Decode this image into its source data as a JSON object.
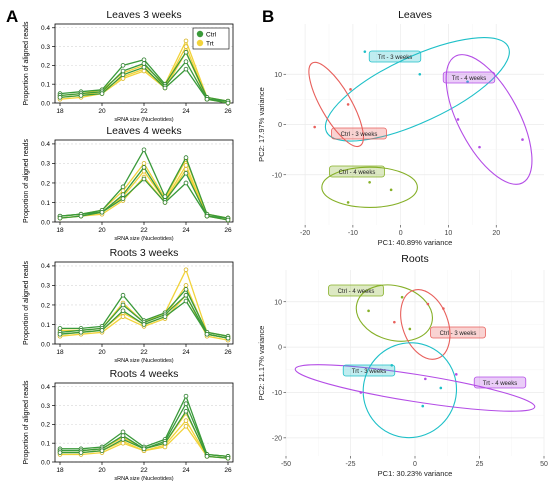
{
  "panels": [
    {
      "letter": "A"
    },
    {
      "letter": "B"
    }
  ],
  "series_colors": {
    "Ctrl": "#3a9a3a",
    "Trt": "#f2d33a"
  },
  "chart_data": [
    {
      "type": "line",
      "title": "Leaves 3 weeks",
      "xlabel": "sRNA size (Nucleotides)",
      "ylabel": "Proportion of aligned reads",
      "x": [
        18,
        19,
        20,
        21,
        22,
        23,
        24,
        25,
        26
      ],
      "xticks": [
        18,
        20,
        22,
        24,
        26
      ],
      "yticks": [
        0.0,
        0.1,
        0.2,
        0.3,
        0.4
      ],
      "ylim": [
        0,
        0.42
      ],
      "legend": [
        "Ctrl",
        "Trt"
      ],
      "legend_position": "top-right",
      "series": [
        {
          "name": "Ctrl",
          "values": [
            0.05,
            0.06,
            0.07,
            0.2,
            0.23,
            0.1,
            0.27,
            0.03,
            0.01
          ]
        },
        {
          "name": "Ctrl",
          "values": [
            0.04,
            0.05,
            0.06,
            0.17,
            0.21,
            0.09,
            0.22,
            0.02,
            0.01
          ]
        },
        {
          "name": "Ctrl",
          "values": [
            0.03,
            0.04,
            0.05,
            0.15,
            0.19,
            0.08,
            0.18,
            0.02,
            0.0
          ]
        },
        {
          "name": "Trt",
          "values": [
            0.04,
            0.05,
            0.07,
            0.16,
            0.2,
            0.1,
            0.33,
            0.03,
            0.01
          ]
        },
        {
          "name": "Trt",
          "values": [
            0.03,
            0.04,
            0.06,
            0.14,
            0.18,
            0.09,
            0.3,
            0.02,
            0.01
          ]
        },
        {
          "name": "Trt",
          "values": [
            0.02,
            0.03,
            0.05,
            0.13,
            0.17,
            0.08,
            0.27,
            0.02,
            0.0
          ]
        }
      ]
    },
    {
      "type": "line",
      "title": "Leaves 4 weeks",
      "xlabel": "sRNA size (Nucleotides)",
      "ylabel": "Proportion of aligned reads",
      "x": [
        18,
        19,
        20,
        21,
        22,
        23,
        24,
        25,
        26
      ],
      "xticks": [
        18,
        20,
        22,
        24,
        26
      ],
      "yticks": [
        0.0,
        0.1,
        0.2,
        0.3,
        0.4
      ],
      "ylim": [
        0,
        0.42
      ],
      "series": [
        {
          "name": "Ctrl",
          "values": [
            0.03,
            0.04,
            0.06,
            0.18,
            0.37,
            0.13,
            0.33,
            0.04,
            0.02
          ]
        },
        {
          "name": "Ctrl",
          "values": [
            0.03,
            0.04,
            0.05,
            0.14,
            0.28,
            0.11,
            0.25,
            0.03,
            0.02
          ]
        },
        {
          "name": "Ctrl",
          "values": [
            0.02,
            0.03,
            0.05,
            0.12,
            0.22,
            0.1,
            0.2,
            0.03,
            0.01
          ]
        },
        {
          "name": "Trt",
          "values": [
            0.03,
            0.04,
            0.06,
            0.16,
            0.3,
            0.12,
            0.32,
            0.04,
            0.02
          ]
        },
        {
          "name": "Trt",
          "values": [
            0.02,
            0.03,
            0.05,
            0.13,
            0.26,
            0.11,
            0.29,
            0.03,
            0.02
          ]
        },
        {
          "name": "Trt",
          "values": [
            0.02,
            0.03,
            0.04,
            0.11,
            0.23,
            0.1,
            0.27,
            0.03,
            0.01
          ]
        }
      ]
    },
    {
      "type": "line",
      "title": "Roots 3 weeks",
      "xlabel": "sRNA size (Nucleotides)",
      "ylabel": "Proportion of aligned reads",
      "x": [
        18,
        19,
        20,
        21,
        22,
        23,
        24,
        25,
        26
      ],
      "xticks": [
        18,
        20,
        22,
        24,
        26
      ],
      "yticks": [
        0.0,
        0.1,
        0.2,
        0.3,
        0.4
      ],
      "ylim": [
        0,
        0.42
      ],
      "series": [
        {
          "name": "Ctrl",
          "values": [
            0.08,
            0.08,
            0.09,
            0.25,
            0.12,
            0.16,
            0.28,
            0.06,
            0.04
          ]
        },
        {
          "name": "Ctrl",
          "values": [
            0.06,
            0.07,
            0.08,
            0.2,
            0.11,
            0.15,
            0.25,
            0.05,
            0.03
          ]
        },
        {
          "name": "Ctrl",
          "values": [
            0.05,
            0.06,
            0.07,
            0.17,
            0.1,
            0.14,
            0.22,
            0.05,
            0.03
          ]
        },
        {
          "name": "Trt",
          "values": [
            0.07,
            0.07,
            0.08,
            0.21,
            0.11,
            0.16,
            0.38,
            0.06,
            0.04
          ]
        },
        {
          "name": "Trt",
          "values": [
            0.05,
            0.06,
            0.07,
            0.16,
            0.1,
            0.14,
            0.3,
            0.05,
            0.03
          ]
        },
        {
          "name": "Trt",
          "values": [
            0.04,
            0.05,
            0.06,
            0.14,
            0.09,
            0.13,
            0.25,
            0.04,
            0.02
          ]
        }
      ]
    },
    {
      "type": "line",
      "title": "Roots 4 weeks",
      "xlabel": "sRNA size (Nucleotides)",
      "ylabel": "Proportion of aligned reads",
      "x": [
        18,
        19,
        20,
        21,
        22,
        23,
        24,
        25,
        26
      ],
      "xticks": [
        18,
        20,
        22,
        24,
        26
      ],
      "yticks": [
        0.0,
        0.1,
        0.2,
        0.3,
        0.4
      ],
      "ylim": [
        0,
        0.42
      ],
      "series": [
        {
          "name": "Ctrl",
          "values": [
            0.07,
            0.07,
            0.08,
            0.16,
            0.08,
            0.12,
            0.35,
            0.04,
            0.03
          ]
        },
        {
          "name": "Ctrl",
          "values": [
            0.06,
            0.06,
            0.07,
            0.14,
            0.07,
            0.11,
            0.31,
            0.04,
            0.03
          ]
        },
        {
          "name": "Ctrl",
          "values": [
            0.05,
            0.05,
            0.06,
            0.12,
            0.07,
            0.1,
            0.27,
            0.03,
            0.02
          ]
        },
        {
          "name": "Trt",
          "values": [
            0.06,
            0.06,
            0.07,
            0.13,
            0.07,
            0.1,
            0.26,
            0.04,
            0.03
          ]
        },
        {
          "name": "Trt",
          "values": [
            0.05,
            0.05,
            0.06,
            0.11,
            0.06,
            0.09,
            0.22,
            0.03,
            0.02
          ]
        },
        {
          "name": "Trt",
          "values": [
            0.04,
            0.04,
            0.05,
            0.1,
            0.06,
            0.08,
            0.19,
            0.03,
            0.02
          ]
        }
      ]
    },
    {
      "type": "scatter",
      "title": "Leaves",
      "xlabel": "PC1: 40.89% variance",
      "ylabel": "PC2: 17.97% variance",
      "xlim": [
        -24,
        30
      ],
      "ylim": [
        -20,
        20
      ],
      "xticks": [
        -20,
        -10,
        0,
        10,
        20
      ],
      "yticks": [
        -10,
        0,
        10
      ],
      "grid": true,
      "series": [
        {
          "name": "Trt - 3 weeks",
          "color": "#1ec0c8",
          "x": [
            -7.5,
            4,
            14
          ],
          "y": [
            14.5,
            10,
            8.5
          ]
        },
        {
          "name": "Trt - 4 weeks",
          "color": "#b44de6",
          "x": [
            12,
            16.5,
            25.5
          ],
          "y": [
            1,
            -4.5,
            -3
          ]
        },
        {
          "name": "Ctrl - 3 weeks",
          "color": "#e8605c",
          "x": [
            -18,
            -11,
            -10.5
          ],
          "y": [
            -0.5,
            4,
            7
          ]
        },
        {
          "name": "Ctrl - 4 weeks",
          "color": "#86b028",
          "x": [
            -11,
            -6.5,
            -2
          ],
          "y": [
            -15.5,
            -11.5,
            -13
          ]
        }
      ],
      "ellipses": [
        {
          "series": "Trt - 3 weeks",
          "cx": 3.5,
          "cy": 7.0,
          "rx": 21,
          "ry": 6.5,
          "angle_deg": 25
        },
        {
          "series": "Trt - 4 weeks",
          "cx": 18.5,
          "cy": 1.0,
          "rx": 15,
          "ry": 6.0,
          "angle_deg": 118
        },
        {
          "series": "Ctrl - 3 weeks",
          "cx": -13.5,
          "cy": 4.0,
          "rx": 10,
          "ry": 3.0,
          "angle_deg": 120
        },
        {
          "series": "Ctrl - 4 weeks",
          "cx": -6.5,
          "cy": -12.5,
          "rx": 10,
          "ry": 4.0,
          "angle_deg": 0
        }
      ],
      "annotations": [
        "Trt - 3 weeks",
        "Trt - 4 weeks",
        "Ctrl - 3 weeks",
        "Ctrl - 4 weeks"
      ]
    },
    {
      "type": "scatter",
      "title": "Roots",
      "xlabel": "PC1: 30.23% variance",
      "ylabel": "PC2: 21.17% variance",
      "xlim": [
        -50,
        50
      ],
      "ylim": [
        -24,
        17
      ],
      "xticks": [
        -50,
        -25,
        0,
        25,
        50
      ],
      "yticks": [
        -20,
        -10,
        0,
        10
      ],
      "grid": true,
      "series": [
        {
          "name": "Ctrl - 4 weeks",
          "color": "#86b028",
          "x": [
            -18,
            -5,
            -2
          ],
          "y": [
            8,
            11,
            4
          ]
        },
        {
          "name": "Ctrl - 3 weeks",
          "color": "#e8605c",
          "x": [
            -8,
            5,
            11
          ],
          "y": [
            5.5,
            9.5,
            8.5
          ]
        },
        {
          "name": "Trt - 3 weeks",
          "color": "#1ec0c8",
          "x": [
            -9,
            3,
            10
          ],
          "y": [
            -4,
            -13,
            -9
          ]
        },
        {
          "name": "Trt - 4 weeks",
          "color": "#b44de6",
          "x": [
            -21,
            4,
            16
          ],
          "y": [
            -10,
            -7,
            -6
          ]
        }
      ],
      "ellipses": [
        {
          "series": "Ctrl - 4 weeks",
          "cx": -8,
          "cy": 7.5,
          "rx": 15,
          "ry": 6.0,
          "angle_deg": -15
        },
        {
          "series": "Ctrl - 3 weeks",
          "cx": 4,
          "cy": 5.0,
          "rx": 14,
          "ry": 5.0,
          "angle_deg": 110
        },
        {
          "series": "Trt - 3 weeks",
          "cx": -2,
          "cy": -9.5,
          "rx": 18,
          "ry": 10.5,
          "angle_deg": -25
        },
        {
          "series": "Trt - 4 weeks",
          "cx": 0,
          "cy": -9.0,
          "rx": 47,
          "ry": 3.0,
          "angle_deg": -9
        }
      ],
      "annotations": [
        "Ctrl - 4 weeks",
        "Ctrl - 3 weeks",
        "Trt - 3 weeks",
        "Trt - 4 weeks"
      ]
    }
  ]
}
